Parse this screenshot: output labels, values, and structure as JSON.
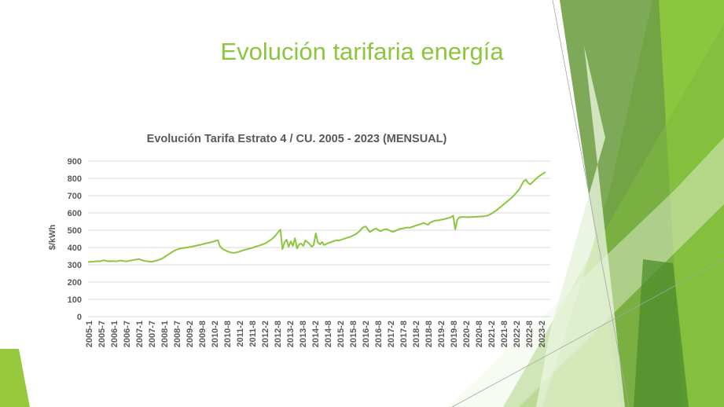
{
  "slide": {
    "title": "Evolución tarifaria energía"
  },
  "chart": {
    "title": "Evolución Tarifa Estrato 4 / CU. 2005 - 2023 (MENSUAL)",
    "y_axis_label": "$/kWh"
  },
  "colors": {
    "title_green": "#8CC63E",
    "line_green": "#8CC63E",
    "grid_gray": "#D9D9D9",
    "text_gray": "#595959",
    "decor_bright": "#8CC63E",
    "decor_olive": "#6FA046",
    "decor_mid": "#7FBA3E",
    "decor_pale": "#E7F2D9",
    "decor_pale2": "#EDF6E2",
    "decor_dark": "#4C8C2B",
    "decor_corner": "#97C93D",
    "decor_hairline": "#A6A6A6"
  },
  "chart_data": {
    "type": "line",
    "title": "Evolución Tarifa Estrato 4 / CU. 2005 - 2023 (MENSUAL)",
    "xlabel": "",
    "ylabel": "$/kWh",
    "ylim": [
      0,
      900
    ],
    "y_ticks": [
      0,
      100,
      200,
      300,
      400,
      500,
      600,
      700,
      800,
      900
    ],
    "grid": "horizontal",
    "legend_position": "none",
    "line_color": "#8CC63E",
    "x_frequency": "monthly",
    "x_start": "2005-01",
    "x_tick_labels": [
      "2005-1",
      "2005-7",
      "2006-1",
      "2006-7",
      "2007-1",
      "2007-7",
      "2008-1",
      "2008-7",
      "2009-2",
      "2009-8",
      "2010-2",
      "2010-8",
      "2011-2",
      "2011-8",
      "2012-2",
      "2012-8",
      "2013-2",
      "2013-8",
      "2014-2",
      "2014-8",
      "2015-2",
      "2015-8",
      "2016-2",
      "2016-8",
      "2017-2",
      "2017-8",
      "2018-2",
      "2018-8",
      "2019-2",
      "2019-8",
      "2020-2",
      "2020-8",
      "2021-2",
      "2021-8",
      "2022-2",
      "2022-8",
      "2023-2"
    ],
    "series": [
      {
        "name": "Tarifa Estrato 4 / CU ($/kWh)",
        "values": [
          316,
          318,
          317,
          319,
          321,
          320,
          322,
          326,
          324,
          321,
          320,
          322,
          321,
          320,
          322,
          324,
          323,
          321,
          320,
          322,
          325,
          327,
          329,
          331,
          333,
          329,
          325,
          322,
          320,
          319,
          318,
          320,
          323,
          326,
          330,
          335,
          342,
          350,
          358,
          366,
          374,
          381,
          387,
          391,
          394,
          396,
          398,
          400,
          402,
          404,
          407,
          409,
          412,
          414,
          417,
          420,
          423,
          426,
          429,
          432,
          435,
          439,
          442,
          408,
          394,
          387,
          381,
          376,
          372,
          370,
          369,
          372,
          375,
          379,
          383,
          387,
          390,
          393,
          396,
          400,
          404,
          408,
          412,
          416,
          420,
          426,
          433,
          441,
          450,
          461,
          474,
          490,
          503,
          391,
          430,
          445,
          404,
          436,
          409,
          454,
          395,
          418,
          423,
          409,
          441,
          432,
          420,
          405,
          414,
          482,
          430,
          418,
          432,
          414,
          420,
          426,
          430,
          434,
          438,
          442,
          440,
          444,
          448,
          452,
          456,
          460,
          464,
          470,
          476,
          484,
          494,
          508,
          518,
          522,
          505,
          490,
          497,
          506,
          510,
          502,
          494,
          499,
          504,
          507,
          501,
          495,
          491,
          495,
          501,
          506,
          509,
          511,
          513,
          516,
          514,
          518,
          522,
          527,
          530,
          534,
          538,
          542,
          536,
          532,
          544,
          550,
          554,
          557,
          557,
          560,
          562,
          565,
          568,
          572,
          575,
          585,
          505,
          562,
          574,
          577,
          577,
          576,
          575,
          576,
          577,
          577,
          578,
          578,
          579,
          580,
          581,
          583,
          587,
          593,
          600,
          608,
          617,
          627,
          637,
          647,
          657,
          667,
          677,
          688,
          699,
          712,
          726,
          742,
          765,
          786,
          792,
          774,
          766,
          776,
          788,
          800,
          810,
          818,
          826,
          834
        ]
      }
    ]
  }
}
